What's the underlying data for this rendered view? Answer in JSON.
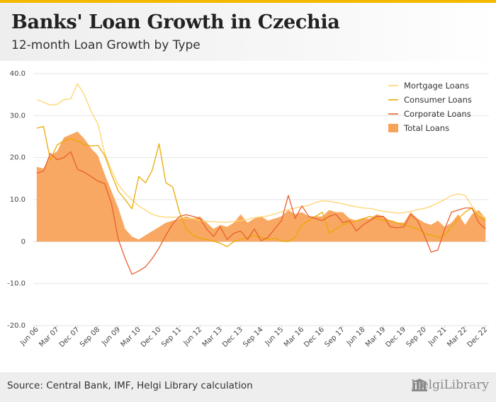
{
  "header": {
    "title": "Banks' Loan Growth in Czechia",
    "subtitle": "12-month Loan Growth by Type"
  },
  "footer": {
    "source": "Source: Central Bank, IMF, Helgi Library calculation",
    "logo_text": "HelgiLibrary"
  },
  "colors": {
    "accent": "#f5b800",
    "mortgage": "#ffd36b",
    "consumer": "#eaaa00",
    "corporate": "#e8602c",
    "total": "#f8a35a"
  },
  "chart_data": {
    "type": "line",
    "title": "12-month Loan Growth by Type",
    "xlabel": "",
    "ylabel": "",
    "ylim": [
      -20,
      40
    ],
    "yticks": [
      "40.0",
      "30.0",
      "20.0",
      "10.0",
      "0",
      "-10.0",
      "-20.0"
    ],
    "ytick_values": [
      40,
      30,
      20,
      10,
      0,
      -10,
      -20
    ],
    "x_tick_labels": [
      "Jun 06",
      "Mar 07",
      "Dec 07",
      "Sep 08",
      "Jun 09",
      "Mar 10",
      "Dec 10",
      "Sep 11",
      "Jun 12",
      "Mar 13",
      "Dec 13",
      "Sep 14",
      "Jun 15",
      "Mar 16",
      "Dec 16",
      "Sep 17",
      "Jun 18",
      "Mar 19",
      "Dec 19",
      "Sep 20",
      "Jun 21",
      "Mar 22",
      "Dec 22"
    ],
    "x_start": "Jun 06",
    "frequency": "quarterly",
    "n_points": 67,
    "legend_position": "top-right",
    "series": [
      {
        "name": "Mortgage Loans",
        "kind": "line",
        "values": [
          33.8,
          33.2,
          32.5,
          32.7,
          33.8,
          34.0,
          37.6,
          35.0,
          31.0,
          28.0,
          21.0,
          17.0,
          13.5,
          11.5,
          10.0,
          8.5,
          7.5,
          6.5,
          6.0,
          5.8,
          5.8,
          5.7,
          5.5,
          5.5,
          5.0,
          4.8,
          4.7,
          4.6,
          4.6,
          4.8,
          5.0,
          5.3,
          5.7,
          5.9,
          6.1,
          6.6,
          7.1,
          7.6,
          8.0,
          8.3,
          8.6,
          9.3,
          9.7,
          9.6,
          9.3,
          9.0,
          8.6,
          8.3,
          8.0,
          7.9,
          7.5,
          7.2,
          7.0,
          6.8,
          6.9,
          7.2,
          7.6,
          7.9,
          8.4,
          9.2,
          10.0,
          11.0,
          11.4,
          11.0,
          8.5,
          6.5,
          5.6
        ]
      },
      {
        "name": "Consumer Loans",
        "kind": "line",
        "values": [
          27.0,
          27.4,
          19.5,
          23.0,
          24.0,
          24.5,
          24.0,
          23.0,
          22.8,
          22.9,
          20.5,
          16.0,
          12.0,
          10.0,
          7.8,
          15.5,
          14.0,
          17.0,
          23.3,
          14.0,
          13.0,
          7.0,
          3.0,
          1.5,
          0.8,
          0.5,
          0.1,
          -0.4,
          -1.2,
          0.0,
          0.5,
          1.0,
          1.5,
          1.0,
          0.5,
          0.8,
          0.1,
          0.0,
          1.0,
          4.0,
          5.0,
          6.0,
          7.0,
          2.0,
          3.0,
          4.0,
          4.5,
          5.0,
          5.5,
          6.0,
          5.5,
          5.0,
          5.0,
          4.5,
          4.0,
          3.5,
          3.0,
          2.0,
          1.5,
          1.0,
          1.5,
          3.5,
          5.5,
          7.0,
          8.0,
          6.0,
          5.0
        ]
      },
      {
        "name": "Corporate Loans",
        "kind": "line",
        "values": [
          16.3,
          16.8,
          21.0,
          19.5,
          20.0,
          21.4,
          17.2,
          16.5,
          15.5,
          14.4,
          13.8,
          9.0,
          0.5,
          -4.0,
          -7.8,
          -7.0,
          -6.0,
          -4.0,
          -1.5,
          1.5,
          4.2,
          6.0,
          6.4,
          6.0,
          5.5,
          3.0,
          1.2,
          3.5,
          0.5,
          2.0,
          2.5,
          0.5,
          3.0,
          0.2,
          1.0,
          3.0,
          5.0,
          11.0,
          5.5,
          8.5,
          6.0,
          5.5,
          5.0,
          6.0,
          6.5,
          4.5,
          5.0,
          2.5,
          4.0,
          5.0,
          6.0,
          6.0,
          3.5,
          3.3,
          3.5,
          6.5,
          5.0,
          1.5,
          -2.5,
          -2.0,
          3.0,
          7.0,
          7.5,
          8.0,
          8.0,
          4.5,
          3.0
        ]
      },
      {
        "name": "Total Loans",
        "kind": "area",
        "values": [
          17.8,
          17.4,
          20.5,
          21.5,
          24.8,
          25.5,
          26.2,
          24.5,
          22.2,
          20.5,
          16.0,
          12.0,
          8.0,
          3.0,
          1.2,
          0.5,
          1.5,
          2.5,
          3.5,
          4.5,
          5.0,
          5.5,
          6.0,
          5.5,
          6.0,
          4.5,
          3.0,
          4.0,
          3.5,
          4.5,
          6.5,
          4.5,
          5.5,
          6.0,
          5.0,
          5.5,
          6.0,
          7.5,
          6.5,
          7.0,
          6.0,
          6.0,
          6.0,
          7.5,
          7.0,
          7.0,
          5.5,
          5.0,
          5.5,
          5.5,
          6.5,
          6.0,
          5.0,
          4.5,
          4.5,
          7.0,
          5.5,
          4.5,
          4.0,
          5.0,
          3.5,
          4.5,
          6.5,
          4.0,
          6.5,
          7.5,
          5.5
        ]
      }
    ]
  }
}
